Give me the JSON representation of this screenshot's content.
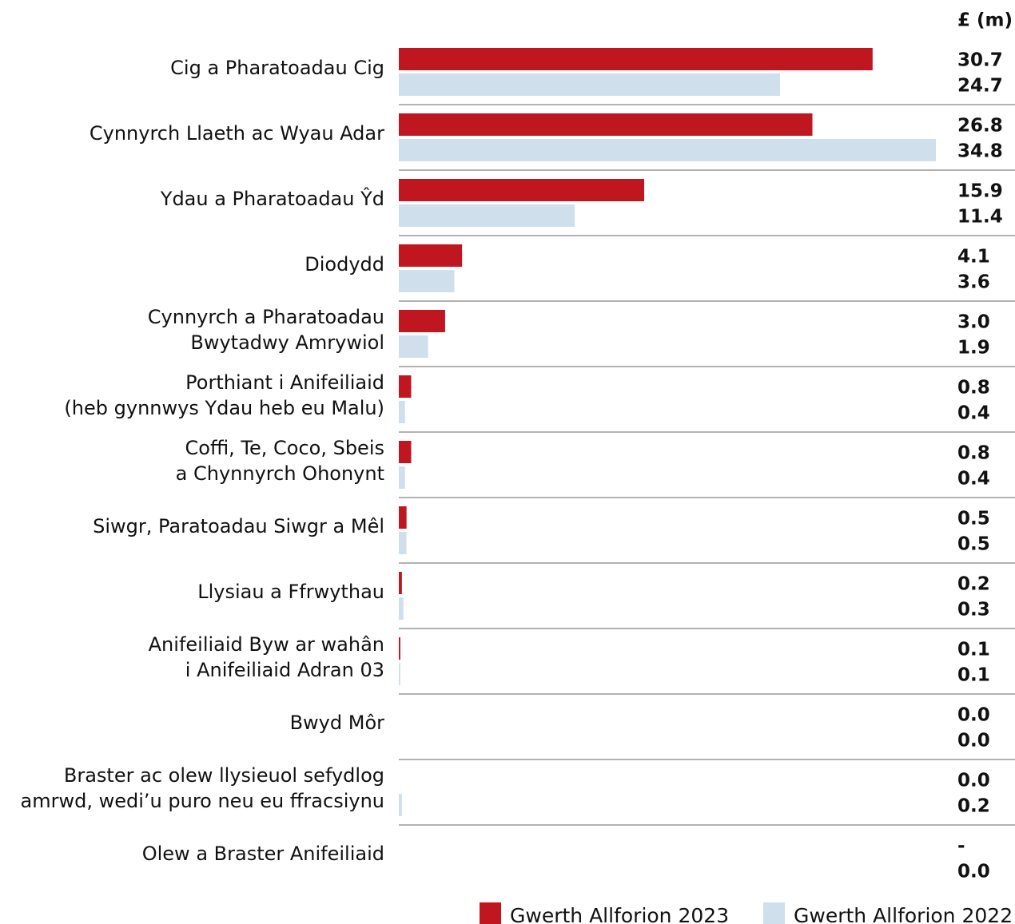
{
  "chart_data": {
    "type": "hbar",
    "unit_label": "£ (m)",
    "categories": [
      "Cig a Pharatoadau Cig",
      "Cynnyrch Llaeth ac Wyau Adar",
      "Ydau a Pharatoadau Ŷd",
      "Diodydd",
      "Cynnyrch a Pharatoadau\nBwytadwy Amrywiol",
      "Porthiant i Anifeiliaid\n(heb gynnwys Ydau heb eu Malu)",
      "Coffi, Te, Coco, Sbeis\na Chynnyrch Ohonynt",
      "Siwgr, Paratoadau Siwgr a Mêl",
      "Llysiau a Ffrwythau",
      "Anifeiliaid Byw ar wahân\ni Anifeiliaid Adran 03",
      "Bwyd Môr",
      "Braster ac olew llysieuol sefydlog\namrwd, wedi’u puro neu eu ffracsiynu",
      "Olew a Braster Anifeiliaid"
    ],
    "series": [
      {
        "name": "Gwerth Allforion 2023",
        "color": "#c0161f",
        "values": [
          30.7,
          26.8,
          15.9,
          4.1,
          3.0,
          0.8,
          0.8,
          0.5,
          0.2,
          0.1,
          0.0,
          0.0,
          null
        ],
        "value_labels": [
          "30.7",
          "26.8",
          "15.9",
          "4.1",
          "3.0",
          "0.8",
          "0.8",
          "0.5",
          "0.2",
          "0.1",
          "0.0",
          "0.0",
          "-"
        ]
      },
      {
        "name": "Gwerth Allforion 2022",
        "color": "#cfe0ec",
        "values": [
          24.7,
          34.8,
          11.4,
          3.6,
          1.9,
          0.4,
          0.4,
          0.5,
          0.3,
          0.1,
          0.0,
          0.2,
          0.0
        ],
        "value_labels": [
          "24.7",
          "34.8",
          "11.4",
          "3.6",
          "1.9",
          "0.4",
          "0.4",
          "0.5",
          "0.3",
          "0.1",
          "0.0",
          "0.2",
          "0.0"
        ]
      }
    ]
  }
}
